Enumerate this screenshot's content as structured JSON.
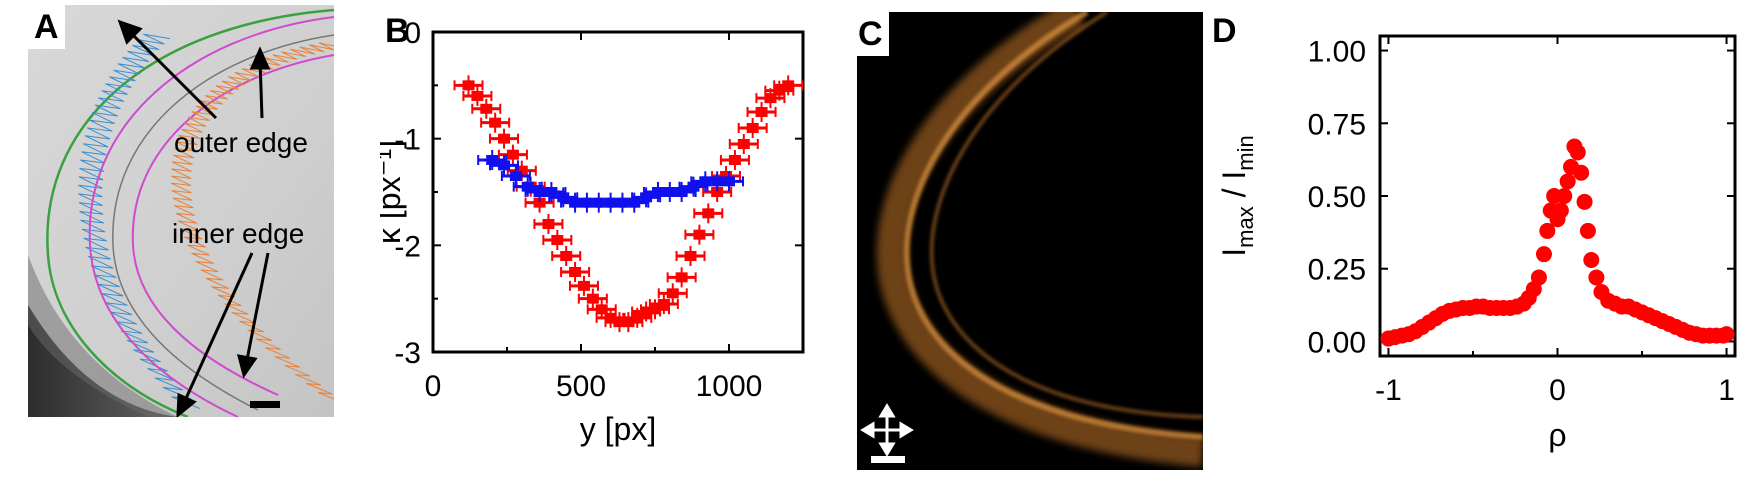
{
  "panels": {
    "a": {
      "letter": "A",
      "annotation_outer": "outer edge",
      "annotation_inner": "inner edge"
    },
    "b": {
      "letter": "B"
    },
    "c": {
      "letter": "C"
    },
    "d": {
      "letter": "D"
    }
  },
  "colors": {
    "red": "#ff0000",
    "blue": "#1010ee",
    "orange_band": "#c8782a",
    "blue_trace": "#3a8fd0",
    "orange_trace": "#e8823a",
    "magenta_edge": "#d04ad0",
    "green_edge": "#3aa040"
  },
  "chart_data": [
    {
      "id": "B",
      "type": "scatter",
      "xlabel": "y [px]",
      "ylabel": "κ [px⁻¹]",
      "xlim": [
        0,
        1250
      ],
      "ylim": [
        -3,
        0
      ],
      "xticks": [
        "0",
        "500",
        "1000"
      ],
      "yticks": [
        "0",
        "-1",
        "-2",
        "-3"
      ],
      "series": [
        {
          "color": "red",
          "x": [
            120,
            150,
            180,
            210,
            240,
            270,
            300,
            330,
            360,
            390,
            420,
            450,
            480,
            510,
            540,
            570,
            600,
            630,
            660,
            690,
            720,
            750,
            780,
            810,
            840,
            870,
            900,
            930,
            960,
            990,
            1020,
            1050,
            1080,
            1110,
            1140,
            1170,
            1200
          ],
          "y": [
            -0.5,
            -0.6,
            -0.72,
            -0.85,
            -1.0,
            -1.15,
            -1.3,
            -1.45,
            -1.6,
            -1.8,
            -1.95,
            -2.1,
            -2.25,
            -2.38,
            -2.5,
            -2.6,
            -2.68,
            -2.72,
            -2.72,
            -2.68,
            -2.62,
            -2.6,
            -2.55,
            -2.45,
            -2.3,
            -2.1,
            -1.9,
            -1.7,
            -1.5,
            -1.35,
            -1.2,
            -1.05,
            -0.9,
            -0.75,
            -0.62,
            -0.55,
            -0.5
          ]
        },
        {
          "color": "blue",
          "x": [
            200,
            240,
            280,
            320,
            360,
            400,
            440,
            480,
            520,
            560,
            600,
            640,
            680,
            720,
            760,
            800,
            840,
            880,
            920,
            960,
            1000
          ],
          "y": [
            -1.2,
            -1.25,
            -1.35,
            -1.45,
            -1.5,
            -1.5,
            -1.55,
            -1.6,
            -1.6,
            -1.6,
            -1.6,
            -1.6,
            -1.6,
            -1.55,
            -1.5,
            -1.5,
            -1.5,
            -1.45,
            -1.4,
            -1.4,
            -1.4
          ]
        }
      ]
    },
    {
      "id": "D",
      "type": "scatter",
      "xlabel": "ρ",
      "ylabel_main": "I",
      "ylabel_sub1": "max",
      "ylabel_mid": " / I",
      "ylabel_sub2": "min",
      "xlim": [
        -1.05,
        1.05
      ],
      "ylim": [
        -0.05,
        1.05
      ],
      "xticks": [
        "-1",
        "0",
        "1"
      ],
      "yticks": [
        "0.00",
        "0.25",
        "0.50",
        "0.75",
        "1.00"
      ],
      "series": [
        {
          "color": "red",
          "x": [
            -1.0,
            -0.96,
            -0.92,
            -0.88,
            -0.84,
            -0.8,
            -0.76,
            -0.72,
            -0.68,
            -0.64,
            -0.6,
            -0.56,
            -0.52,
            -0.48,
            -0.44,
            -0.4,
            -0.36,
            -0.32,
            -0.28,
            -0.24,
            -0.2,
            -0.17,
            -0.14,
            -0.11,
            -0.08,
            -0.06,
            -0.04,
            -0.02,
            0.0,
            0.02,
            0.04,
            0.06,
            0.08,
            0.1,
            0.12,
            0.14,
            0.16,
            0.18,
            0.2,
            0.23,
            0.26,
            0.3,
            0.34,
            0.38,
            0.42,
            0.46,
            0.5,
            0.54,
            0.58,
            0.62,
            0.66,
            0.7,
            0.74,
            0.78,
            0.82,
            0.86,
            0.9,
            0.94,
            0.98,
            1.0
          ],
          "y": [
            0.01,
            0.015,
            0.02,
            0.025,
            0.035,
            0.05,
            0.065,
            0.08,
            0.095,
            0.105,
            0.11,
            0.115,
            0.115,
            0.12,
            0.12,
            0.115,
            0.115,
            0.115,
            0.115,
            0.12,
            0.13,
            0.15,
            0.18,
            0.22,
            0.3,
            0.38,
            0.45,
            0.5,
            0.42,
            0.45,
            0.5,
            0.55,
            0.6,
            0.67,
            0.65,
            0.58,
            0.48,
            0.38,
            0.28,
            0.22,
            0.17,
            0.14,
            0.13,
            0.12,
            0.12,
            0.11,
            0.1,
            0.09,
            0.08,
            0.07,
            0.06,
            0.05,
            0.04,
            0.03,
            0.025,
            0.02,
            0.02,
            0.02,
            0.02,
            0.025
          ]
        }
      ]
    }
  ]
}
